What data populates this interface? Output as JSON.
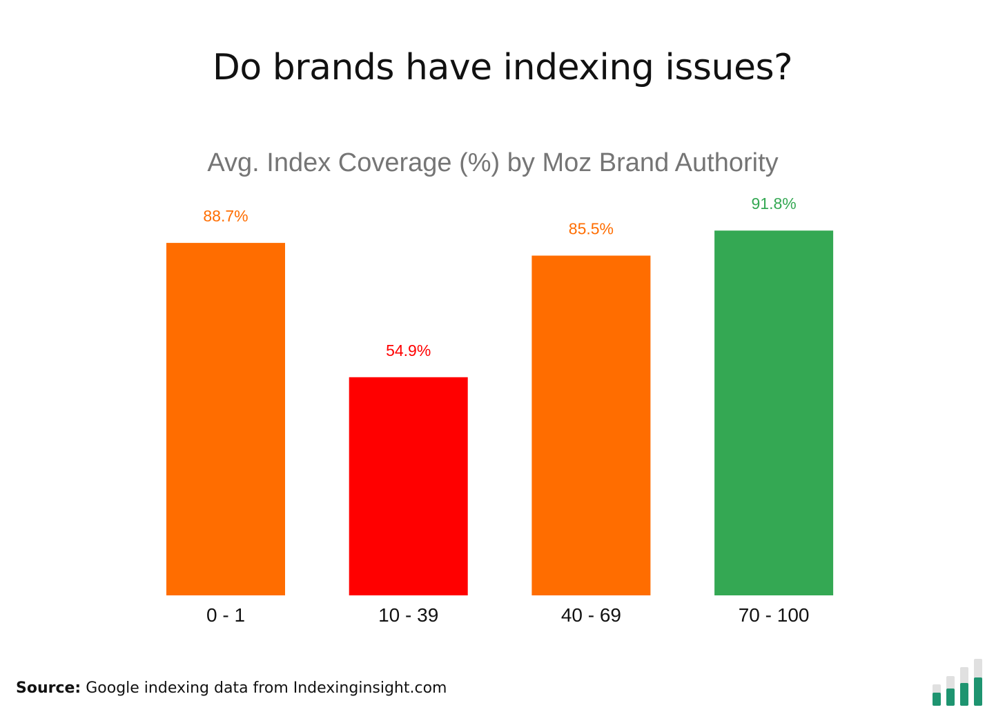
{
  "title": "Do brands have indexing issues?",
  "source": {
    "label": "Source:",
    "text": "Google indexing data from Indexinginsight.com"
  },
  "chart_data": {
    "type": "bar",
    "title": "Avg. Index Coverage (%) by Moz Brand Authority",
    "categories": [
      "0 - 1",
      "10 - 39",
      "40 - 69",
      "70 - 100"
    ],
    "values": [
      88.7,
      54.9,
      85.5,
      91.8
    ],
    "data_labels": [
      "88.7%",
      "54.9%",
      "85.5%",
      "91.8%"
    ],
    "colors": [
      "#ff6d00",
      "#ff0000",
      "#ff6d00",
      "#34a853"
    ],
    "xlabel": "",
    "ylabel": "",
    "ylim": [
      0,
      100
    ],
    "grid": false,
    "legend": "none"
  },
  "logo_colors": {
    "fill": "#1e9470",
    "track": "#e0e0e0"
  }
}
